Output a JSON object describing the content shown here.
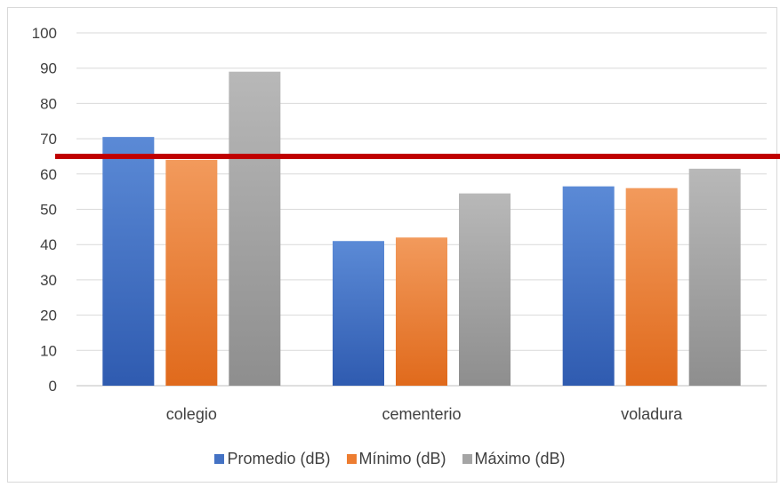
{
  "chart_data": {
    "type": "bar",
    "categories": [
      "colegio",
      "cementerio",
      "voladura"
    ],
    "series": [
      {
        "name": "Promedio (dB)",
        "values": [
          70.5,
          41,
          56.5
        ],
        "color": "#4472c4"
      },
      {
        "name": "Mínimo (dB)",
        "values": [
          64,
          42,
          56
        ],
        "color": "#ed7d31"
      },
      {
        "name": "Máximo (dB)",
        "values": [
          89,
          54.5,
          61.5
        ],
        "color": "#a5a5a5"
      }
    ],
    "ylim": [
      0,
      100
    ],
    "yticks": [
      "0",
      "10",
      "20",
      "30",
      "40",
      "50",
      "60",
      "70",
      "80",
      "90",
      "100"
    ],
    "reference_line": {
      "value": 65,
      "color": "#c00000"
    },
    "grid": true,
    "legend_position": "bottom"
  }
}
